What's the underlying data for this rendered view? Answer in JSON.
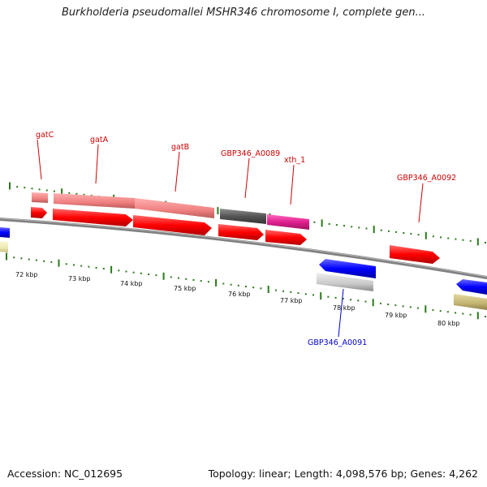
{
  "title": "Burkholderia pseudomallei MSHR346 chromosome I, complete gen...",
  "footer": {
    "accession": "Accession: NC_012695",
    "summary": "Topology: linear; Length: 4,098,576 bp; Genes: 4,262"
  },
  "axis": {
    "tick_labels": [
      "72 kbp",
      "73 kbp",
      "74 kbp",
      "75 kbp",
      "76 kbp",
      "77 kbp",
      "78 kbp",
      "79 kbp",
      "80 kbp"
    ]
  },
  "genes": [
    {
      "label": "gatC",
      "color": "#cc0000",
      "label_color": "#cc0000"
    },
    {
      "label": "gatA",
      "color": "#cc0000",
      "label_color": "#cc0000"
    },
    {
      "label": "gatB",
      "color": "#cc0000",
      "label_color": "#cc0000"
    },
    {
      "label": "GBP346_A0089",
      "color": "#cc0000",
      "label_color": "#cc0000"
    },
    {
      "label": "xth_1",
      "color": "#cc0000",
      "label_color": "#cc0000"
    },
    {
      "label": "GBP346_A0092",
      "color": "#cc0000",
      "label_color": "#cc0000"
    },
    {
      "label": "GBP346_A0091",
      "color": "#0000cc",
      "label_color": "#0000cc"
    }
  ],
  "colors": {
    "forward_gene": "#ff0000",
    "reverse_gene": "#0000ff",
    "backbone": "#808080",
    "tick": "#2a7a1a",
    "feature_pink": "#f08080",
    "feature_grey": "#555555",
    "feature_magenta": "#e0208f",
    "feature_light_grey": "#c8c8c8",
    "feature_khaki": "#c2b370",
    "feature_pale_yellow": "#ede8b0"
  }
}
